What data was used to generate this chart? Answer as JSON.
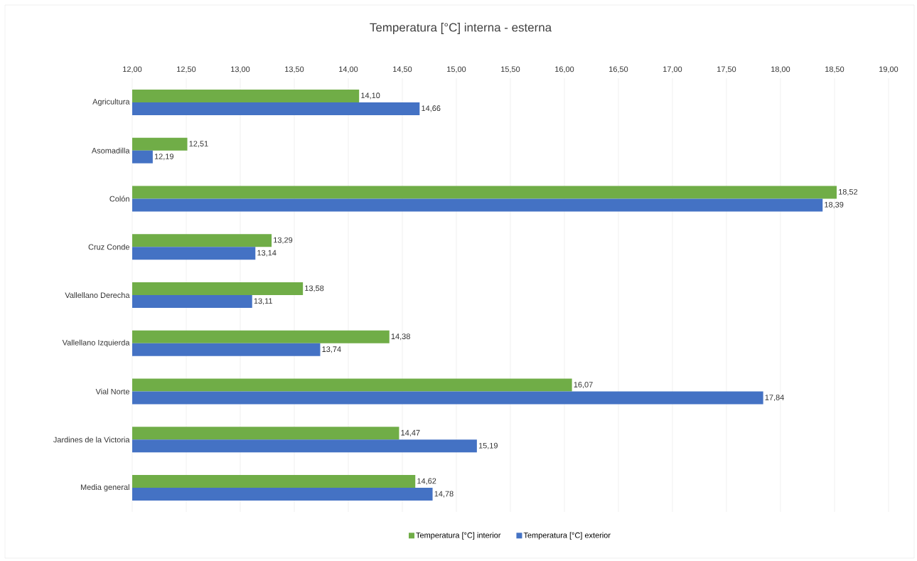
{
  "chart_data": {
    "type": "bar",
    "orientation": "horizontal",
    "title": "Temperatura [°C] interna - esterna",
    "categories": [
      "Agricultura",
      "Asomadilla",
      "Colón",
      "Cruz Conde",
      "Vallellano Derecha",
      "Vallellano Izquierda",
      "Vial Norte",
      "Jardines de la Victoria",
      "Media general"
    ],
    "series": [
      {
        "name": "Temperatura [°C] interior",
        "color": "#70ad47",
        "values": [
          14.1,
          12.51,
          18.52,
          13.29,
          13.58,
          14.38,
          16.07,
          14.47,
          14.62
        ],
        "value_labels": [
          "14,10",
          "12,51",
          "18,52",
          "13,29",
          "13,58",
          "14,38",
          "16,07",
          "14,47",
          "14,62"
        ]
      },
      {
        "name": "Temperatura [°C] exterior",
        "color": "#4472c4",
        "values": [
          14.66,
          12.19,
          18.39,
          13.14,
          13.11,
          13.74,
          17.84,
          15.19,
          14.78
        ],
        "value_labels": [
          "14,66",
          "12,19",
          "18,39",
          "13,14",
          "13,11",
          "13,74",
          "17,84",
          "15,19",
          "14,78"
        ]
      }
    ],
    "xlim": [
      12,
      19
    ],
    "xticks": [
      {
        "value": 12,
        "label": "12,00"
      },
      {
        "value": 12.5,
        "label": "12,50"
      },
      {
        "value": 13,
        "label": "13,00"
      },
      {
        "value": 13.5,
        "label": "13,50"
      },
      {
        "value": 14,
        "label": "14,00"
      },
      {
        "value": 14.5,
        "label": "14,50"
      },
      {
        "value": 15,
        "label": "15,00"
      },
      {
        "value": 15.5,
        "label": "15,50"
      },
      {
        "value": 16,
        "label": "16,00"
      },
      {
        "value": 16.5,
        "label": "16,50"
      },
      {
        "value": 17,
        "label": "17,00"
      },
      {
        "value": 17.5,
        "label": "17,50"
      },
      {
        "value": 18,
        "label": "18,00"
      },
      {
        "value": 18.5,
        "label": "18,50"
      },
      {
        "value": 19,
        "label": "19,00"
      }
    ],
    "grid": "x",
    "legend": "bottom"
  }
}
